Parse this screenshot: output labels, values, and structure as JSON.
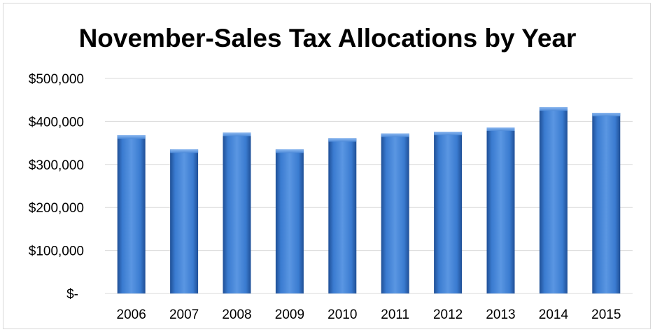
{
  "chart_data": {
    "type": "bar",
    "title": "November-Sales Tax Allocations by Year",
    "xlabel": "",
    "ylabel": "",
    "categories": [
      "2006",
      "2007",
      "2008",
      "2009",
      "2010",
      "2011",
      "2012",
      "2013",
      "2014",
      "2015"
    ],
    "values": [
      368000,
      335000,
      374000,
      335000,
      361000,
      372000,
      376000,
      386000,
      433000,
      420000
    ],
    "ylim": [
      0,
      500000
    ],
    "yticks": [
      0,
      100000,
      200000,
      300000,
      400000,
      500000
    ],
    "ytick_labels": [
      "$-",
      "$100,000",
      "$200,000",
      "$300,000",
      "$400,000",
      "$500,000"
    ],
    "grid": true,
    "legend": "none",
    "bar_color": "#2E6DC0"
  }
}
